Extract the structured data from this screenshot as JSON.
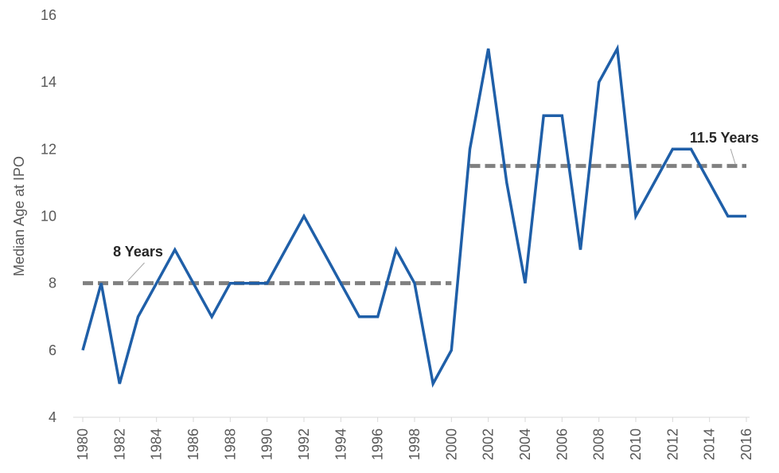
{
  "chart_data": {
    "type": "line",
    "title": "",
    "xlabel": "",
    "ylabel": "Median Age at IPO",
    "ylim": [
      4,
      16
    ],
    "yticks": [
      4,
      6,
      8,
      10,
      12,
      14,
      16
    ],
    "xticks": [
      1980,
      1982,
      1984,
      1986,
      1988,
      1990,
      1992,
      1994,
      1996,
      1998,
      2000,
      2002,
      2004,
      2006,
      2008,
      2010,
      2012,
      2014,
      2016
    ],
    "xlim": [
      1980,
      2016
    ],
    "grid": false,
    "legend": "none",
    "series": [
      {
        "color": "#1f5fa8",
        "x": [
          1980,
          1981,
          1982,
          1983,
          1984,
          1985,
          1986,
          1987,
          1988,
          1989,
          1990,
          1991,
          1992,
          1993,
          1994,
          1995,
          1996,
          1997,
          1998,
          1999,
          2000,
          2001,
          2002,
          2003,
          2004,
          2005,
          2006,
          2007,
          2008,
          2009,
          2010,
          2011,
          2012,
          2013,
          2014,
          2015,
          2016
        ],
        "values": [
          6,
          8,
          5,
          7,
          8,
          9,
          8,
          7,
          8,
          8,
          8,
          9,
          10,
          9,
          8,
          7,
          7,
          9,
          8,
          5,
          6,
          12,
          15,
          11,
          8,
          13,
          13,
          9,
          14,
          15,
          10,
          11,
          12,
          12,
          11,
          10,
          10
        ]
      }
    ],
    "reference_lines": [
      {
        "label": "8 Years",
        "value": 8,
        "x_start": 1980,
        "x_end": 2000,
        "color": "#808080",
        "label_x": 1983,
        "label_y": 8.8
      },
      {
        "label": "11.5 Years",
        "value": 11.5,
        "x_start": 2001,
        "x_end": 2016,
        "color": "#808080",
        "label_x": 2014.8,
        "label_y": 12.2
      }
    ]
  }
}
